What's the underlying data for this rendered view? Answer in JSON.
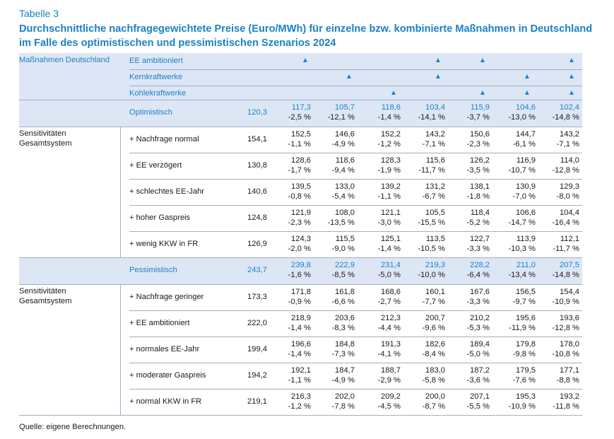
{
  "table_label": "Tabelle 3",
  "title": "Durchschnittliche nachfragegewichtete Preise (Euro/MWh) für einzelne bzw. kombinierte Maßnahmen in Deutschland im Falle des optimistischen und pessimistischen Szenarios 2024",
  "header": {
    "group_label": "Maßnahmen Deutschland",
    "measures": [
      {
        "label": "EE ambitioniert",
        "marks": [
          true,
          false,
          false,
          true,
          true,
          false,
          true
        ]
      },
      {
        "label": "Kernkraftwerke",
        "marks": [
          false,
          true,
          false,
          true,
          false,
          true,
          true
        ]
      },
      {
        "label": "Kohlekraftwerke",
        "marks": [
          false,
          false,
          true,
          false,
          true,
          true,
          true
        ]
      }
    ],
    "mark_symbol": "▲"
  },
  "groups": [
    {
      "scenario": {
        "label": "Optimistisch",
        "base": "120,3",
        "values": [
          "117,3",
          "105,7",
          "118,6",
          "103,4",
          "115,9",
          "104,6",
          "102,4"
        ],
        "changes": [
          "-2,5 %",
          "-12,1 %",
          "-1,4 %",
          "-14,1 %",
          "-3,7 %",
          "-13,0 %",
          "-14,8 %"
        ]
      },
      "sens_label_line1": "Sensitivitäten",
      "sens_label_line2": "Gesamtsystem",
      "rows": [
        {
          "label": "+ Nachfrage normal",
          "base": "154,1",
          "values": [
            "152,5",
            "146,6",
            "152,2",
            "143,2",
            "150,6",
            "144,7",
            "143,2"
          ],
          "changes": [
            "-1,1 %",
            "-4,9 %",
            "-1,2 %",
            "-7,1 %",
            "-2,3 %",
            "-6,1 %",
            "-7,1 %"
          ]
        },
        {
          "label": "+ EE verzögert",
          "base": "130,8",
          "values": [
            "128,6",
            "118,6",
            "128,3",
            "115,6",
            "126,2",
            "116,9",
            "114,0"
          ],
          "changes": [
            "-1,7 %",
            "-9,4 %",
            "-1,9 %",
            "-11,7 %",
            "-3,5 %",
            "-10,7 %",
            "-12,8 %"
          ]
        },
        {
          "label": "+ schlechtes EE-Jahr",
          "base": "140,6",
          "values": [
            "139,5",
            "133,0",
            "139,2",
            "131,2",
            "138,1",
            "130,9",
            "129,3"
          ],
          "changes": [
            "-0,8 %",
            "-5,4 %",
            "-1,1 %",
            "-6,7 %",
            "-1,8 %",
            "-7,0 %",
            "-8,0 %"
          ]
        },
        {
          "label": "+ hoher Gaspreis",
          "base": "124,8",
          "values": [
            "121,9",
            "108,0",
            "121,1",
            "105,5",
            "118,4",
            "106,6",
            "104,4"
          ],
          "changes": [
            "-2,3 %",
            "-13,5 %",
            "-3,0 %",
            "-15,5 %",
            "-5,2 %",
            "-14,7 %",
            "-16,4 %"
          ]
        },
        {
          "label": "+ wenig KKW in FR",
          "base": "126,9",
          "values": [
            "124,3",
            "115,5",
            "125,1",
            "113,5",
            "122,7",
            "113,9",
            "112,1"
          ],
          "changes": [
            "-2,0 %",
            "-9,0 %",
            "-1,4 %",
            "-10,5 %",
            "-3,3 %",
            "-10,3 %",
            "-11,7 %"
          ]
        }
      ]
    },
    {
      "scenario": {
        "label": "Pessimistisch",
        "base": "243,7",
        "values": [
          "239,8",
          "222,9",
          "231,4",
          "219,3",
          "228,2",
          "211,0",
          "207,5"
        ],
        "changes": [
          "-1,6 %",
          "-8,5 %",
          "-5,0 %",
          "-10,0 %",
          "-6,4 %",
          "-13,4 %",
          "-14,8 %"
        ]
      },
      "sens_label_line1": "Sensitivitäten",
      "sens_label_line2": "Gesamtsystem",
      "rows": [
        {
          "label": "+ Nachfrage geringer",
          "base": "173,3",
          "values": [
            "171,8",
            "161,8",
            "168,6",
            "160,1",
            "167,6",
            "156,5",
            "154,4"
          ],
          "changes": [
            "-0,9 %",
            "-6,6 %",
            "-2,7 %",
            "-7,7 %",
            "-3,3 %",
            "-9,7 %",
            "-10,9 %"
          ]
        },
        {
          "label": "+ EE ambitioniert",
          "base": "222,0",
          "values": [
            "218,9",
            "203,6",
            "212,3",
            "200,7",
            "210,2",
            "195,6",
            "193,6"
          ],
          "changes": [
            "-1,4 %",
            "-8,3 %",
            "-4,4 %",
            "-9,6 %",
            "-5,3 %",
            "-11,9 %",
            "-12,8 %"
          ]
        },
        {
          "label": "+ normales EE-Jahr",
          "base": "199,4",
          "values": [
            "196,6",
            "184,8",
            "191,3",
            "182,6",
            "189,4",
            "179,8",
            "178,0"
          ],
          "changes": [
            "-1,4 %",
            "-7,3 %",
            "-4,1 %",
            "-8,4 %",
            "-5,0 %",
            "-9,8 %",
            "-10,8 %"
          ]
        },
        {
          "label": "+ moderater Gaspreis",
          "base": "194,2",
          "values": [
            "192,1",
            "184,7",
            "188,7",
            "183,0",
            "187,2",
            "179,5",
            "177,1"
          ],
          "changes": [
            "-1,1 %",
            "-4,9 %",
            "-2,9 %",
            "-5,8 %",
            "-3,6 %",
            "-7,6 %",
            "-8,8 %"
          ]
        },
        {
          "label": "+ normal KKW in FR",
          "base": "219,1",
          "values": [
            "216,3",
            "202,0",
            "209,2",
            "200,0",
            "207,1",
            "195,3",
            "193,2"
          ],
          "changes": [
            "-1,2 %",
            "-7,8 %",
            "-4,5 %",
            "-8,7 %",
            "-5,5 %",
            "-10,9 %",
            "-11,8 %"
          ]
        }
      ]
    }
  ],
  "footnote": "Quelle: eigene Berechnungen."
}
